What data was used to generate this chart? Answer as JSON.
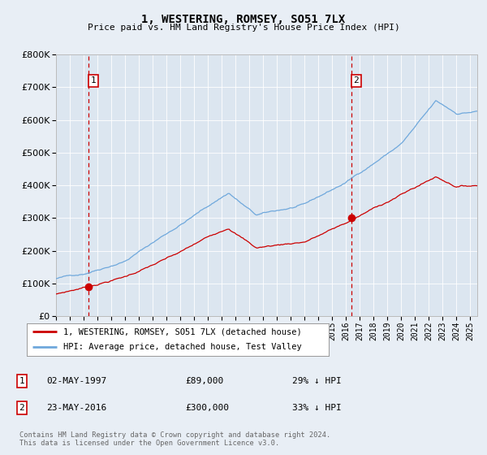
{
  "title": "1, WESTERING, ROMSEY, SO51 7LX",
  "subtitle": "Price paid vs. HM Land Registry's House Price Index (HPI)",
  "legend_label_red": "1, WESTERING, ROMSEY, SO51 7LX (detached house)",
  "legend_label_blue": "HPI: Average price, detached house, Test Valley",
  "table_rows": [
    {
      "num": "1",
      "date": "02-MAY-1997",
      "price": "£89,000",
      "hpi": "29% ↓ HPI"
    },
    {
      "num": "2",
      "date": "23-MAY-2016",
      "price": "£300,000",
      "hpi": "33% ↓ HPI"
    }
  ],
  "footnote": "Contains HM Land Registry data © Crown copyright and database right 2024.\nThis data is licensed under the Open Government Licence v3.0.",
  "purchase1_year": 1997.36,
  "purchase1_price": 89000,
  "purchase2_year": 2016.39,
  "purchase2_price": 300000,
  "hpi_color": "#6fa8dc",
  "price_color": "#cc0000",
  "dashed_color": "#cc0000",
  "background_color": "#e8eef5",
  "plot_bg_color": "#dce6f0",
  "ylim": [
    0,
    800000
  ],
  "xlim_start": 1995.0,
  "xlim_end": 2025.5,
  "ytick_values": [
    0,
    100000,
    200000,
    300000,
    400000,
    500000,
    600000,
    700000,
    800000
  ],
  "xtick_years": [
    1995,
    1996,
    1997,
    1998,
    1999,
    2000,
    2001,
    2002,
    2003,
    2004,
    2005,
    2006,
    2007,
    2008,
    2009,
    2010,
    2011,
    2012,
    2013,
    2014,
    2015,
    2016,
    2017,
    2018,
    2019,
    2020,
    2021,
    2022,
    2023,
    2024,
    2025
  ]
}
